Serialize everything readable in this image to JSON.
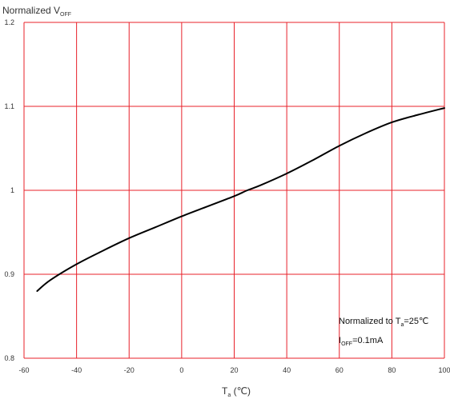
{
  "chart_data": {
    "type": "line",
    "ylabel": {
      "main": "Normalized V",
      "sub": "OFF"
    },
    "xlabel": {
      "main": "T",
      "sub": "a",
      "unit": " (℃)"
    },
    "xlim": [
      -60,
      100
    ],
    "ylim": [
      0.8,
      1.2
    ],
    "xticks": [
      -60,
      -40,
      -20,
      0,
      20,
      40,
      60,
      80,
      100
    ],
    "yticks": [
      0.8,
      0.9,
      1,
      1.1,
      1.2
    ],
    "xtick_labels": [
      "-60",
      "-40",
      "-20",
      "0",
      "20",
      "40",
      "60",
      "80",
      "100"
    ],
    "ytick_labels": [
      "0.8",
      "0.9",
      "1",
      "1.1",
      "1.2"
    ],
    "grid": true,
    "colors": {
      "grid": "#e8202a",
      "series": "#000000"
    },
    "series": [
      {
        "x": [
          -55,
          -50,
          -40,
          -30,
          -20,
          -10,
          0,
          10,
          20,
          25,
          30,
          40,
          50,
          60,
          70,
          80,
          90,
          100
        ],
        "y": [
          0.88,
          0.893,
          0.912,
          0.928,
          0.943,
          0.956,
          0.969,
          0.981,
          0.993,
          1.0,
          1.006,
          1.02,
          1.036,
          1.053,
          1.068,
          1.081,
          1.09,
          1.098
        ]
      }
    ],
    "annotation": {
      "line1_prefix": "Normalized to T",
      "line1_sub": "a",
      "line1_suffix": "=25℃",
      "line2_prefix": "I",
      "line2_sub": "OFF",
      "line2_suffix": "=0.1mA"
    }
  }
}
